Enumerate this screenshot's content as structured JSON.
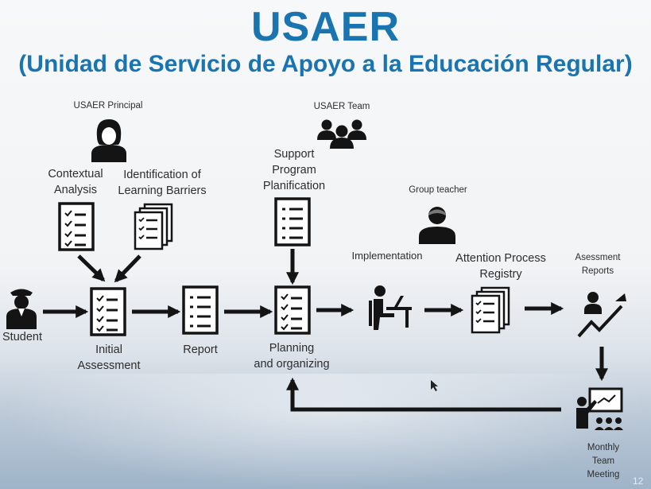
{
  "title": "USAER",
  "subtitle": "(Unidad de Servicio de Apoyo a la Educación Regular)",
  "roles": {
    "principal": "USAER Principal",
    "team": "USAER Team",
    "teacher": "Group teacher"
  },
  "steps": {
    "student": "Student",
    "contextual_1": "Contextual",
    "contextual_2": "Analysis",
    "barriers_1": "Identification of",
    "barriers_2": "Learning Barriers",
    "initial_1": "Initial",
    "initial_2": "Assessment",
    "report": "Report",
    "support_1": "Support",
    "support_2": "Program",
    "support_3": "Planification",
    "planning_1": "Planning",
    "planning_2": "and organizing",
    "implementation": "Implementation",
    "attention_1": "Attention Process",
    "attention_2": "Registry",
    "assess_1": "Asessment",
    "assess_2": "Reports",
    "monthly_1": "Monthly",
    "monthly_2": "Team",
    "monthly_3": "Meeting"
  },
  "page_number": "12",
  "colors": {
    "title": "#1a74b0",
    "ink": "#141414"
  }
}
